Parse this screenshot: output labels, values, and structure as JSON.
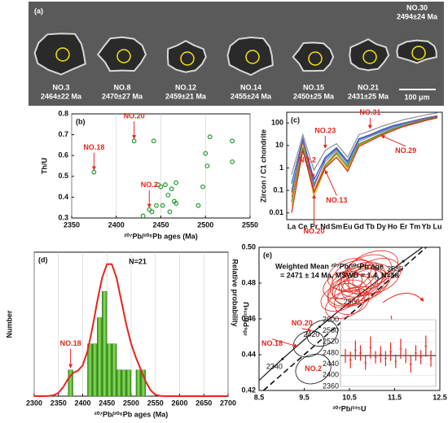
{
  "panel_a": {
    "label": "(a)",
    "grains": [
      {
        "id": "NO.3",
        "age": "2464±22 Ma"
      },
      {
        "id": "NO.8",
        "age": "2470±27 Ma"
      },
      {
        "id": "NO.12",
        "age": "2459±21 Ma"
      },
      {
        "id": "NO.14",
        "age": "2455±24 Ma"
      },
      {
        "id": "NO.15",
        "age": "2450±25 Ma"
      },
      {
        "id": "NO.21",
        "age": "2431±25 Ma"
      },
      {
        "id": "NO.30",
        "age": "2494±24 Ma"
      }
    ],
    "scale_bar": "100 μm"
  },
  "chart_data": [
    {
      "type": "scatter",
      "panel": "(b)",
      "xlabel": "²⁰⁷Pb/²⁰⁶Pb ages (Ma)",
      "ylabel": "Th/U",
      "color": "#1f9a2a",
      "x": [
        2375,
        2420,
        2442,
        2430,
        2437,
        2440,
        2445,
        2447,
        2450,
        2452,
        2455,
        2458,
        2460,
        2462,
        2465,
        2467,
        2467,
        2492,
        2497,
        2500,
        2502,
        2505,
        2530,
        2530
      ],
      "values": [
        0.52,
        0.67,
        0.67,
        0.31,
        0.34,
        0.33,
        0.36,
        0.46,
        0.45,
        0.36,
        0.46,
        0.41,
        0.33,
        0.44,
        0.38,
        0.47,
        0.37,
        0.36,
        0.45,
        0.61,
        0.55,
        0.69,
        0.67,
        0.57
      ],
      "xlim": [
        2350,
        2550
      ],
      "xticks": [
        2350,
        2400,
        2450,
        2500,
        2550
      ],
      "ylim": [
        0.3,
        0.8
      ],
      "yticks": [
        0.3,
        0.4,
        0.5,
        0.6,
        0.7,
        0.8
      ],
      "grid": true,
      "annotations": [
        {
          "text": "NO.20",
          "point": 1
        },
        {
          "text": "NO.18",
          "point": 0
        },
        {
          "text": "NO.2",
          "point": 4
        }
      ]
    },
    {
      "type": "ree",
      "panel": "(c)",
      "ylabel": "Zircon / C1 chondrite",
      "yscale": "log",
      "categories": [
        "La",
        "Ce",
        "Pr",
        "Nd",
        "Sm",
        "Eu",
        "Gd",
        "Tb",
        "Dy",
        "Ho",
        "Er",
        "Tm",
        "Yb",
        "Lu"
      ],
      "ylim": [
        0.005,
        300
      ],
      "yticks": [
        0.01,
        0.1,
        1,
        10,
        100
      ],
      "series": [
        {
          "color": "#8c8c8c",
          "values": [
            0.5,
            30,
            0.8,
            6,
            12,
            3,
            30,
            45,
            70,
            100,
            140,
            180,
            230,
            280
          ]
        },
        {
          "color": "#1f5fbf",
          "values": [
            0.2,
            20,
            0.3,
            3,
            8,
            2,
            20,
            30,
            50,
            75,
            100,
            130,
            170,
            210
          ]
        },
        {
          "color": "#3aa0d8",
          "values": [
            0.1,
            15,
            0.2,
            2,
            6,
            1.5,
            15,
            25,
            40,
            60,
            90,
            120,
            160,
            200
          ]
        },
        {
          "color": "#f08a1c",
          "values": [
            0.05,
            12,
            0.1,
            1.5,
            5,
            1,
            12,
            20,
            35,
            55,
            80,
            110,
            150,
            190
          ]
        },
        {
          "color": "#e8c21a",
          "values": [
            0.02,
            10,
            0.05,
            1,
            4,
            0.8,
            10,
            18,
            30,
            50,
            75,
            100,
            140,
            180
          ]
        },
        {
          "color": "#3c9a3c",
          "values": [
            0.03,
            8,
            0.08,
            1.2,
            4.5,
            1.2,
            11,
            19,
            32,
            52,
            78,
            105,
            145,
            185
          ]
        },
        {
          "color": "#d62020",
          "values": [
            0.01,
            6,
            0.08,
            1,
            3,
            0.7,
            9,
            16,
            28,
            45,
            70,
            95,
            130,
            170
          ]
        },
        {
          "color": "#7a4fb0",
          "values": [
            0.08,
            18,
            0.15,
            2.5,
            7,
            1.8,
            18,
            28,
            45,
            68,
            95,
            125,
            165,
            205
          ]
        }
      ],
      "annotations": [
        {
          "text": "NO.2",
          "series": 1,
          "category": 2
        },
        {
          "text": "NO.23",
          "series": 0,
          "category": 3
        },
        {
          "text": "NO.31",
          "series": 0,
          "category": 7
        },
        {
          "text": "NO.29",
          "series": 3,
          "category": 8
        },
        {
          "text": "NO.13",
          "series": 4,
          "category": 3
        },
        {
          "text": "NO.20",
          "series": 6,
          "category": 2
        }
      ]
    },
    {
      "type": "histogram",
      "panel": "(d)",
      "title": "N=21",
      "xlabel": "²⁰⁷Pb/²⁰⁶Pb ages (Ma)",
      "ylabel": "Number",
      "y2label": "Relative probability",
      "color": "#4cb82a",
      "bins": [
        2370,
        2380,
        2390,
        2400,
        2410,
        2420,
        2430,
        2440,
        2450,
        2460,
        2470,
        2480,
        2490,
        2500,
        2510,
        2520,
        2530,
        2540
      ],
      "values": [
        1,
        0,
        0,
        0,
        2,
        2,
        3,
        4,
        2,
        2,
        1,
        1,
        1,
        0,
        1,
        1,
        0
      ],
      "xlim": [
        2300,
        2700
      ],
      "xticks": [
        2300,
        2350,
        2400,
        2450,
        2500,
        2550,
        2600,
        2650,
        2700
      ],
      "ylim": [
        0,
        5.5
      ],
      "grid": true,
      "density": {
        "axis": "y2",
        "color": "#e8241c",
        "x": [
          2300,
          2310,
          2320,
          2330,
          2340,
          2350,
          2360,
          2370,
          2380,
          2390,
          2400,
          2410,
          2420,
          2430,
          2440,
          2450,
          2460,
          2470,
          2480,
          2490,
          2500,
          2510,
          2520,
          2530,
          2540,
          2550,
          2560,
          2570,
          2580,
          2590,
          2600,
          2610,
          2620,
          2630,
          2640,
          2650,
          2660,
          2670,
          2680,
          2690,
          2700
        ],
        "values": [
          0,
          0,
          0,
          0.001,
          0.006,
          0.023,
          0.064,
          0.121,
          0.161,
          0.176,
          0.214,
          0.314,
          0.471,
          0.658,
          0.821,
          0.917,
          0.917,
          0.821,
          0.658,
          0.496,
          0.363,
          0.268,
          0.184,
          0.102,
          0.042,
          0.01,
          0.002,
          0,
          0,
          0,
          0,
          0,
          0,
          0,
          0,
          0,
          0,
          0,
          0,
          0,
          0
        ]
      },
      "y2lim": [
        0,
        1
      ],
      "annotations": [
        {
          "text": "NO.18",
          "bin": 0
        }
      ]
    },
    {
      "type": "concordia",
      "panel": "(e)",
      "xlabel": "²⁰⁷Pb/²³⁵U",
      "ylabel": "²⁰⁶Pb/²³⁸U",
      "mean_text": [
        "Weighted Mean ²⁰⁷Pb/²⁰⁶Pb age",
        "= 2471 ± 14 Ma, MSWD = 1.4, N=18"
      ],
      "xlim": [
        8.5,
        12.5
      ],
      "xticks": [
        8.5,
        9.5,
        10.5,
        11.5,
        12.5
      ],
      "ylim": [
        0.42,
        0.5
      ],
      "yticks": [
        {
          "value": 0.42,
          "label": "0.42"
        },
        {
          "value": 0.44,
          "label": "0.44"
        },
        {
          "value": 0.46,
          "label": "0.46"
        },
        {
          "value": 0.48,
          "label": "0.48"
        },
        {
          "value": 0.5,
          "label": "0.50"
        }
      ],
      "concordia_ages": [
        2340,
        2420,
        2500,
        2580
      ],
      "discordia": {
        "x": [
          8.6,
          12.2
        ],
        "y": [
          0.42,
          0.5
        ]
      },
      "series": [
        {
          "color": "#e8241c",
          "x": [
            10.3,
            10.5,
            10.6,
            10.7,
            10.8,
            10.55,
            10.9,
            10.4,
            10.65,
            11.0,
            10.75,
            10.45,
            10.85,
            10.6,
            10.35,
            10.95,
            10.5,
            11.1
          ],
          "values": [
            0.472,
            0.476,
            0.48,
            0.478,
            0.483,
            0.47,
            0.486,
            0.468,
            0.476,
            0.488,
            0.481,
            0.474,
            0.479,
            0.484,
            0.479,
            0.482,
            0.485,
            0.484
          ],
          "x_err": [
            0.45,
            0.5,
            0.55,
            0.6,
            0.5,
            0.4,
            0.55,
            0.45,
            0.5,
            0.6,
            0.5,
            0.45,
            0.55,
            0.5,
            0.45,
            0.5,
            0.5,
            0.55
          ],
          "y_err": [
            0.007,
            0.008,
            0.008,
            0.009,
            0.008,
            0.007,
            0.009,
            0.007,
            0.008,
            0.009,
            0.008,
            0.007,
            0.008,
            0.008,
            0.007,
            0.008,
            0.008,
            0.009
          ]
        },
        {
          "color": "#111111",
          "x": [
            9.9,
            9.6,
            9.7
          ],
          "values": [
            0.452,
            0.446,
            0.432
          ],
          "x_err": [
            0.35,
            0.35,
            0.4
          ],
          "y_err": [
            0.007,
            0.007,
            0.008
          ]
        }
      ],
      "annotations": [
        {
          "text": "NO.20",
          "series": 1,
          "point": 0
        },
        {
          "text": "NO.18",
          "series": 1,
          "point": 1
        },
        {
          "text": "NO.2",
          "series": 1,
          "point": 2
        }
      ]
    },
    {
      "type": "errorbar",
      "color": "#e8241c",
      "ylim": [
        2360,
        2600
      ],
      "yticks": [
        2360,
        2400,
        2440,
        2480,
        2520,
        2560,
        2600
      ],
      "mean": 2471,
      "values": [
        2470,
        2455,
        2490,
        2480,
        2445,
        2500,
        2465,
        2475,
        2460,
        2485,
        2450,
        2495,
        2470,
        2440,
        2480,
        2465,
        2505,
        2460
      ],
      "errors": [
        25,
        30,
        35,
        28,
        25,
        40,
        22,
        30,
        27,
        33,
        24,
        36,
        26,
        30,
        28,
        25,
        38,
        29
      ]
    }
  ]
}
